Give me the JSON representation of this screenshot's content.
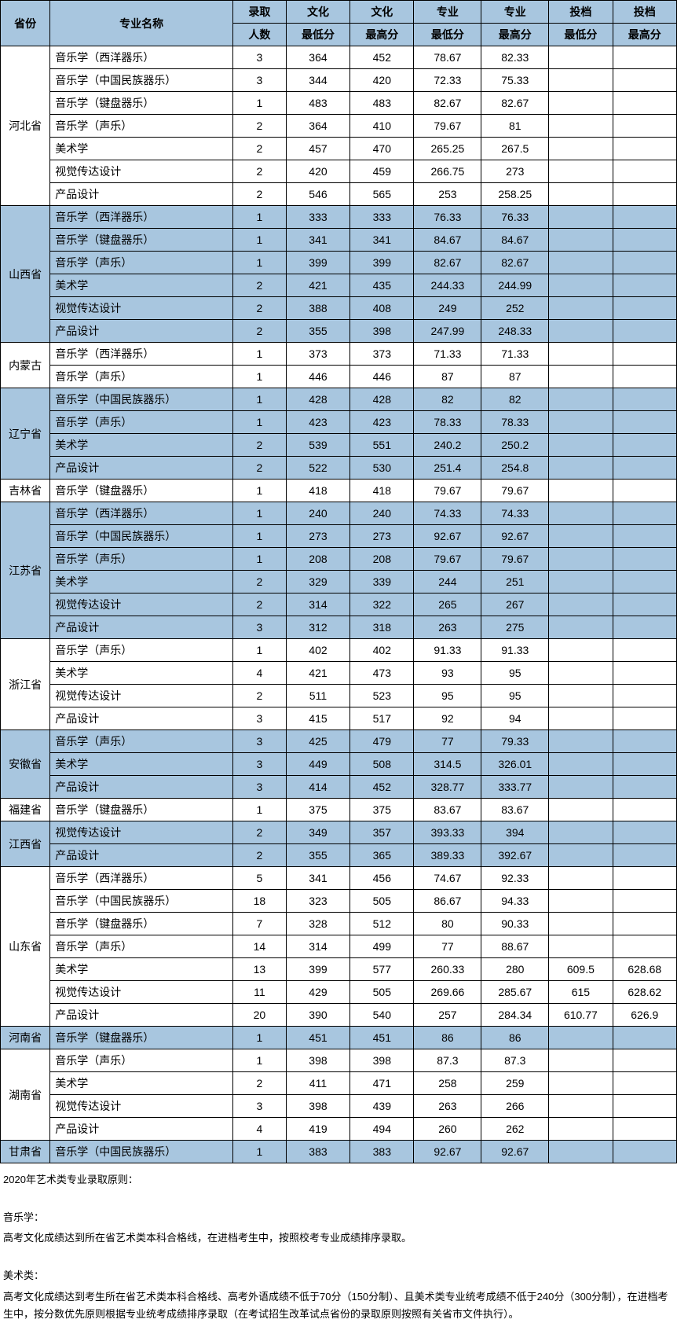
{
  "cols": {
    "province": "省份",
    "major": "专业名称",
    "count_l1": "录取",
    "count_l2": "人数",
    "cmin_l1": "文化",
    "cmin_l2": "最低分",
    "cmax_l1": "文化",
    "cmax_l2": "最高分",
    "pmin_l1": "专业",
    "pmin_l2": "最低分",
    "pmax_l1": "专业",
    "pmax_l2": "最高分",
    "tmin_l1": "投档",
    "tmin_l2": "最低分",
    "tmax_l1": "投档",
    "tmax_l2": "最高分"
  },
  "colWidths": {
    "province": 56,
    "major": 206,
    "count": 60,
    "cmin": 72,
    "cmax": 72,
    "pmin": 76,
    "pmax": 76,
    "tmin": 72,
    "tmax": 72
  },
  "colors": {
    "header": "#a8c6df",
    "shade": "#a8c6df",
    "border": "#000000"
  },
  "groups": [
    {
      "province": "河北省",
      "shade": false,
      "rows": [
        {
          "major": "音乐学（西洋器乐）",
          "count": 3,
          "cmin": 364,
          "cmax": 452,
          "pmin": "78.67",
          "pmax": "82.33",
          "tmin": "",
          "tmax": ""
        },
        {
          "major": "音乐学（中国民族器乐）",
          "count": 3,
          "cmin": 344,
          "cmax": 420,
          "pmin": "72.33",
          "pmax": "75.33",
          "tmin": "",
          "tmax": ""
        },
        {
          "major": "音乐学（键盘器乐）",
          "count": 1,
          "cmin": 483,
          "cmax": 483,
          "pmin": "82.67",
          "pmax": "82.67",
          "tmin": "",
          "tmax": ""
        },
        {
          "major": "音乐学（声乐）",
          "count": 2,
          "cmin": 364,
          "cmax": 410,
          "pmin": "79.67",
          "pmax": "81",
          "tmin": "",
          "tmax": ""
        },
        {
          "major": "美术学",
          "count": 2,
          "cmin": 457,
          "cmax": 470,
          "pmin": "265.25",
          "pmax": "267.5",
          "tmin": "",
          "tmax": ""
        },
        {
          "major": "视觉传达设计",
          "count": 2,
          "cmin": 420,
          "cmax": 459,
          "pmin": "266.75",
          "pmax": "273",
          "tmin": "",
          "tmax": ""
        },
        {
          "major": "产品设计",
          "count": 2,
          "cmin": 546,
          "cmax": 565,
          "pmin": "253",
          "pmax": "258.25",
          "tmin": "",
          "tmax": ""
        }
      ]
    },
    {
      "province": "山西省",
      "shade": true,
      "rows": [
        {
          "major": "音乐学（西洋器乐）",
          "count": 1,
          "cmin": 333,
          "cmax": 333,
          "pmin": "76.33",
          "pmax": "76.33",
          "tmin": "",
          "tmax": ""
        },
        {
          "major": "音乐学（键盘器乐）",
          "count": 1,
          "cmin": 341,
          "cmax": 341,
          "pmin": "84.67",
          "pmax": "84.67",
          "tmin": "",
          "tmax": ""
        },
        {
          "major": "音乐学（声乐）",
          "count": 1,
          "cmin": 399,
          "cmax": 399,
          "pmin": "82.67",
          "pmax": "82.67",
          "tmin": "",
          "tmax": ""
        },
        {
          "major": "美术学",
          "count": 2,
          "cmin": 421,
          "cmax": 435,
          "pmin": "244.33",
          "pmax": "244.99",
          "tmin": "",
          "tmax": ""
        },
        {
          "major": "视觉传达设计",
          "count": 2,
          "cmin": 388,
          "cmax": 408,
          "pmin": "249",
          "pmax": "252",
          "tmin": "",
          "tmax": ""
        },
        {
          "major": "产品设计",
          "count": 2,
          "cmin": 355,
          "cmax": 398,
          "pmin": "247.99",
          "pmax": "248.33",
          "tmin": "",
          "tmax": ""
        }
      ]
    },
    {
      "province": "内蒙古",
      "shade": false,
      "rows": [
        {
          "major": "音乐学（西洋器乐）",
          "count": 1,
          "cmin": 373,
          "cmax": 373,
          "pmin": "71.33",
          "pmax": "71.33",
          "tmin": "",
          "tmax": ""
        },
        {
          "major": "音乐学（声乐）",
          "count": 1,
          "cmin": 446,
          "cmax": 446,
          "pmin": "87",
          "pmax": "87",
          "tmin": "",
          "tmax": ""
        }
      ]
    },
    {
      "province": "辽宁省",
      "shade": true,
      "rows": [
        {
          "major": "音乐学（中国民族器乐）",
          "count": 1,
          "cmin": 428,
          "cmax": 428,
          "pmin": "82",
          "pmax": "82",
          "tmin": "",
          "tmax": ""
        },
        {
          "major": "音乐学（声乐）",
          "count": 1,
          "cmin": 423,
          "cmax": 423,
          "pmin": "78.33",
          "pmax": "78.33",
          "tmin": "",
          "tmax": ""
        },
        {
          "major": "美术学",
          "count": 2,
          "cmin": 539,
          "cmax": 551,
          "pmin": "240.2",
          "pmax": "250.2",
          "tmin": "",
          "tmax": ""
        },
        {
          "major": "产品设计",
          "count": 2,
          "cmin": 522,
          "cmax": 530,
          "pmin": "251.4",
          "pmax": "254.8",
          "tmin": "",
          "tmax": ""
        }
      ]
    },
    {
      "province": "吉林省",
      "shade": false,
      "rows": [
        {
          "major": "音乐学（键盘器乐）",
          "count": 1,
          "cmin": 418,
          "cmax": 418,
          "pmin": "79.67",
          "pmax": "79.67",
          "tmin": "",
          "tmax": ""
        }
      ]
    },
    {
      "province": "江苏省",
      "shade": true,
      "rows": [
        {
          "major": "音乐学（西洋器乐）",
          "count": 1,
          "cmin": 240,
          "cmax": 240,
          "pmin": "74.33",
          "pmax": "74.33",
          "tmin": "",
          "tmax": ""
        },
        {
          "major": "音乐学（中国民族器乐）",
          "count": 1,
          "cmin": 273,
          "cmax": 273,
          "pmin": "92.67",
          "pmax": "92.67",
          "tmin": "",
          "tmax": ""
        },
        {
          "major": "音乐学（声乐）",
          "count": 1,
          "cmin": 208,
          "cmax": 208,
          "pmin": "79.67",
          "pmax": "79.67",
          "tmin": "",
          "tmax": ""
        },
        {
          "major": "美术学",
          "count": 2,
          "cmin": 329,
          "cmax": 339,
          "pmin": "244",
          "pmax": "251",
          "tmin": "",
          "tmax": ""
        },
        {
          "major": "视觉传达设计",
          "count": 2,
          "cmin": 314,
          "cmax": 322,
          "pmin": "265",
          "pmax": "267",
          "tmin": "",
          "tmax": ""
        },
        {
          "major": "产品设计",
          "count": 3,
          "cmin": 312,
          "cmax": 318,
          "pmin": "263",
          "pmax": "275",
          "tmin": "",
          "tmax": ""
        }
      ]
    },
    {
      "province": "浙江省",
      "shade": false,
      "rows": [
        {
          "major": "音乐学（声乐）",
          "count": 1,
          "cmin": 402,
          "cmax": 402,
          "pmin": "91.33",
          "pmax": "91.33",
          "tmin": "",
          "tmax": ""
        },
        {
          "major": "美术学",
          "count": 4,
          "cmin": 421,
          "cmax": 473,
          "pmin": "93",
          "pmax": "95",
          "tmin": "",
          "tmax": ""
        },
        {
          "major": "视觉传达设计",
          "count": 2,
          "cmin": 511,
          "cmax": 523,
          "pmin": "95",
          "pmax": "95",
          "tmin": "",
          "tmax": ""
        },
        {
          "major": "产品设计",
          "count": 3,
          "cmin": 415,
          "cmax": 517,
          "pmin": "92",
          "pmax": "94",
          "tmin": "",
          "tmax": ""
        }
      ]
    },
    {
      "province": "安徽省",
      "shade": true,
      "rows": [
        {
          "major": "音乐学（声乐）",
          "count": 3,
          "cmin": 425,
          "cmax": 479,
          "pmin": "77",
          "pmax": "79.33",
          "tmin": "",
          "tmax": ""
        },
        {
          "major": "美术学",
          "count": 3,
          "cmin": 449,
          "cmax": 508,
          "pmin": "314.5",
          "pmax": "326.01",
          "tmin": "",
          "tmax": ""
        },
        {
          "major": "产品设计",
          "count": 3,
          "cmin": 414,
          "cmax": 452,
          "pmin": "328.77",
          "pmax": "333.77",
          "tmin": "",
          "tmax": ""
        }
      ]
    },
    {
      "province": "福建省",
      "shade": false,
      "rows": [
        {
          "major": "音乐学（键盘器乐）",
          "count": 1,
          "cmin": 375,
          "cmax": 375,
          "pmin": "83.67",
          "pmax": "83.67",
          "tmin": "",
          "tmax": ""
        }
      ]
    },
    {
      "province": "江西省",
      "shade": true,
      "rows": [
        {
          "major": "视觉传达设计",
          "count": 2,
          "cmin": 349,
          "cmax": 357,
          "pmin": "393.33",
          "pmax": "394",
          "tmin": "",
          "tmax": ""
        },
        {
          "major": "产品设计",
          "count": 2,
          "cmin": 355,
          "cmax": 365,
          "pmin": "389.33",
          "pmax": "392.67",
          "tmin": "",
          "tmax": ""
        }
      ]
    },
    {
      "province": "山东省",
      "shade": false,
      "rows": [
        {
          "major": "音乐学（西洋器乐）",
          "count": 5,
          "cmin": 341,
          "cmax": 456,
          "pmin": "74.67",
          "pmax": "92.33",
          "tmin": "",
          "tmax": ""
        },
        {
          "major": "音乐学（中国民族器乐）",
          "count": 18,
          "cmin": 323,
          "cmax": 505,
          "pmin": "86.67",
          "pmax": "94.33",
          "tmin": "",
          "tmax": ""
        },
        {
          "major": "音乐学（键盘器乐）",
          "count": 7,
          "cmin": 328,
          "cmax": 512,
          "pmin": "80",
          "pmax": "90.33",
          "tmin": "",
          "tmax": ""
        },
        {
          "major": "音乐学（声乐）",
          "count": 14,
          "cmin": 314,
          "cmax": 499,
          "pmin": "77",
          "pmax": "88.67",
          "tmin": "",
          "tmax": ""
        },
        {
          "major": "美术学",
          "count": 13,
          "cmin": 399,
          "cmax": 577,
          "pmin": "260.33",
          "pmax": "280",
          "tmin": "609.5",
          "tmax": "628.68"
        },
        {
          "major": "视觉传达设计",
          "count": 11,
          "cmin": 429,
          "cmax": 505,
          "pmin": "269.66",
          "pmax": "285.67",
          "tmin": "615",
          "tmax": "628.62"
        },
        {
          "major": "产品设计",
          "count": 20,
          "cmin": 390,
          "cmax": 540,
          "pmin": "257",
          "pmax": "284.34",
          "tmin": "610.77",
          "tmax": "626.9"
        }
      ]
    },
    {
      "province": "河南省",
      "shade": true,
      "rows": [
        {
          "major": "音乐学（键盘器乐）",
          "count": 1,
          "cmin": 451,
          "cmax": 451,
          "pmin": "86",
          "pmax": "86",
          "tmin": "",
          "tmax": ""
        }
      ]
    },
    {
      "province": "湖南省",
      "shade": false,
      "rows": [
        {
          "major": "音乐学（声乐）",
          "count": 1,
          "cmin": 398,
          "cmax": 398,
          "pmin": "87.3",
          "pmax": "87.3",
          "tmin": "",
          "tmax": ""
        },
        {
          "major": "美术学",
          "count": 2,
          "cmin": 411,
          "cmax": 471,
          "pmin": "258",
          "pmax": "259",
          "tmin": "",
          "tmax": ""
        },
        {
          "major": "视觉传达设计",
          "count": 3,
          "cmin": 398,
          "cmax": 439,
          "pmin": "263",
          "pmax": "266",
          "tmin": "",
          "tmax": ""
        },
        {
          "major": "产品设计",
          "count": 4,
          "cmin": 419,
          "cmax": 494,
          "pmin": "260",
          "pmax": "262",
          "tmin": "",
          "tmax": ""
        }
      ]
    },
    {
      "province": "甘肃省",
      "shade": true,
      "rows": [
        {
          "major": "音乐学（中国民族器乐）",
          "count": 1,
          "cmin": 383,
          "cmax": 383,
          "pmin": "92.67",
          "pmax": "92.67",
          "tmin": "",
          "tmax": ""
        }
      ]
    }
  ],
  "footer": {
    "title": "2020年艺术类专业录取原则：",
    "music_h": "音乐学：",
    "music_t": "高考文化成绩达到所在省艺术类本科合格线，在进档考生中，按照校考专业成绩排序录取。",
    "art_h": "美术类：",
    "art_t": "高考文化成绩达到考生所在省艺术类本科合格线、高考外语成绩不低于70分（150分制）、且美术类专业统考成绩不低于240分（300分制），在进档考生中，按分数优先原则根据专业统考成绩排序录取（在考试招生改革试点省份的录取原则按照有关省市文件执行）。"
  }
}
